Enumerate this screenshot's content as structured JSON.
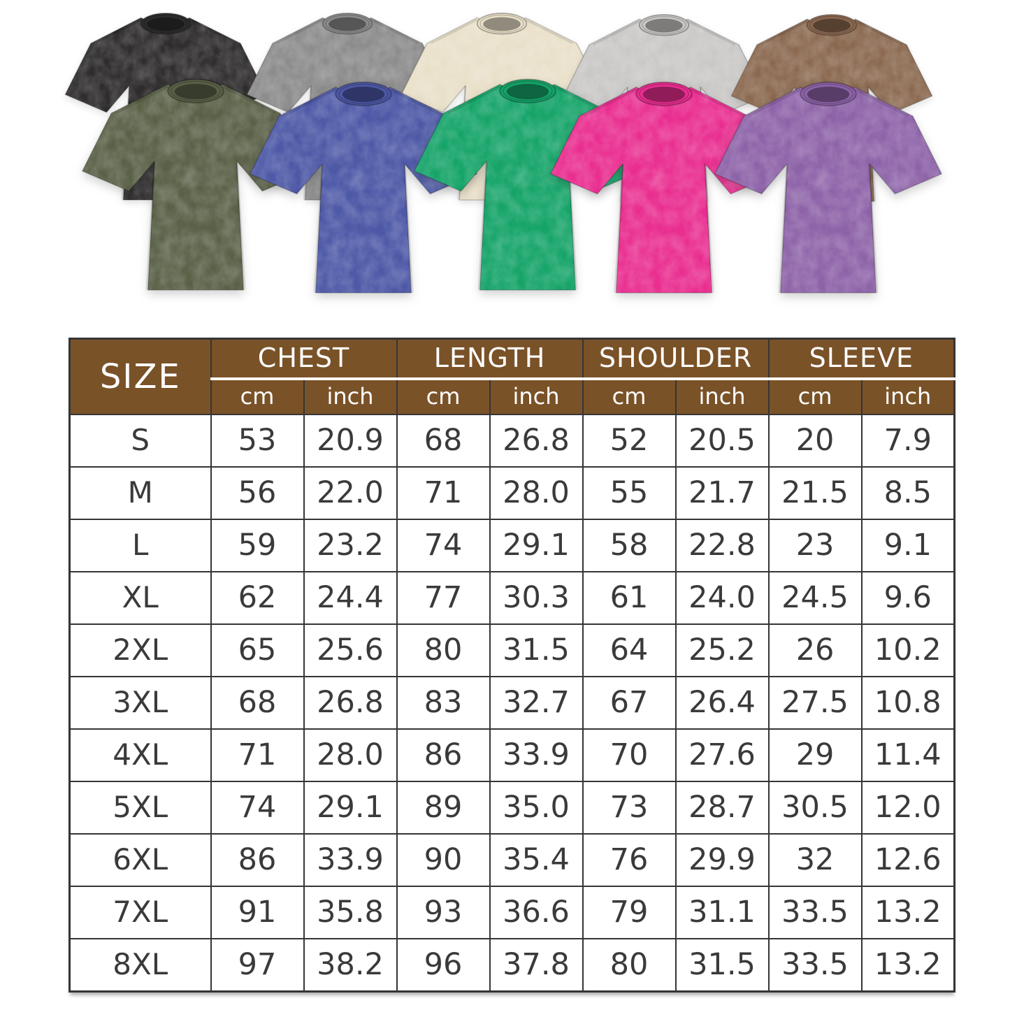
{
  "page": {
    "background": "#ffffff"
  },
  "products": {
    "shirts_back_row": [
      {
        "name": "black-washed-tee",
        "color": "#2e2c2d"
      },
      {
        "name": "gray-washed-tee",
        "color": "#8c8c8c"
      },
      {
        "name": "beige-washed-tee",
        "color": "#e9e0c9"
      },
      {
        "name": "light-gray-washed-tee",
        "color": "#cac8c6"
      },
      {
        "name": "brown-washed-tee",
        "color": "#8b6950"
      }
    ],
    "shirts_front_row": [
      {
        "name": "army-green-washed-tee",
        "color": "#5a6147"
      },
      {
        "name": "blue-washed-tee",
        "color": "#4d58a6"
      },
      {
        "name": "green-washed-tee",
        "color": "#16a469"
      },
      {
        "name": "rose-washed-tee",
        "color": "#e92e90"
      },
      {
        "name": "purple-washed-tee",
        "color": "#8d63a8"
      }
    ]
  },
  "chart_data": {
    "type": "table",
    "title": "",
    "corner_label": "SIZE",
    "column_groups": [
      "CHEST",
      "LENGTH",
      "SHOULDER",
      "SLEEVE"
    ],
    "subcolumns": [
      "cm",
      "inch"
    ],
    "rows": [
      {
        "size": "S",
        "values": [
          "53",
          "20.9",
          "68",
          "26.8",
          "52",
          "20.5",
          "20",
          "7.9"
        ]
      },
      {
        "size": "M",
        "values": [
          "56",
          "22.0",
          "71",
          "28.0",
          "55",
          "21.7",
          "21.5",
          "8.5"
        ]
      },
      {
        "size": "L",
        "values": [
          "59",
          "23.2",
          "74",
          "29.1",
          "58",
          "22.8",
          "23",
          "9.1"
        ]
      },
      {
        "size": "XL",
        "values": [
          "62",
          "24.4",
          "77",
          "30.3",
          "61",
          "24.0",
          "24.5",
          "9.6"
        ]
      },
      {
        "size": "2XL",
        "values": [
          "65",
          "25.6",
          "80",
          "31.5",
          "64",
          "25.2",
          "26",
          "10.2"
        ]
      },
      {
        "size": "3XL",
        "values": [
          "68",
          "26.8",
          "83",
          "32.7",
          "67",
          "26.4",
          "27.5",
          "10.8"
        ]
      },
      {
        "size": "4XL",
        "values": [
          "71",
          "28.0",
          "86",
          "33.9",
          "70",
          "27.6",
          "29",
          "11.4"
        ]
      },
      {
        "size": "5XL",
        "values": [
          "74",
          "29.1",
          "89",
          "35.0",
          "73",
          "28.7",
          "30.5",
          "12.0"
        ]
      },
      {
        "size": "6XL",
        "values": [
          "86",
          "33.9",
          "90",
          "35.4",
          "76",
          "29.9",
          "32",
          "12.6"
        ]
      },
      {
        "size": "7XL",
        "values": [
          "91",
          "35.8",
          "93",
          "36.6",
          "79",
          "31.1",
          "33.5",
          "13.2"
        ]
      },
      {
        "size": "8XL",
        "values": [
          "97",
          "38.2",
          "96",
          "37.8",
          "80",
          "31.5",
          "33.5",
          "13.2"
        ]
      }
    ],
    "colors": {
      "header_bg": "#7a5228",
      "header_text": "#ffffff",
      "grid_border": "#353535",
      "cell_text": "#3a3a3a"
    },
    "grid": true,
    "legend": "none"
  }
}
